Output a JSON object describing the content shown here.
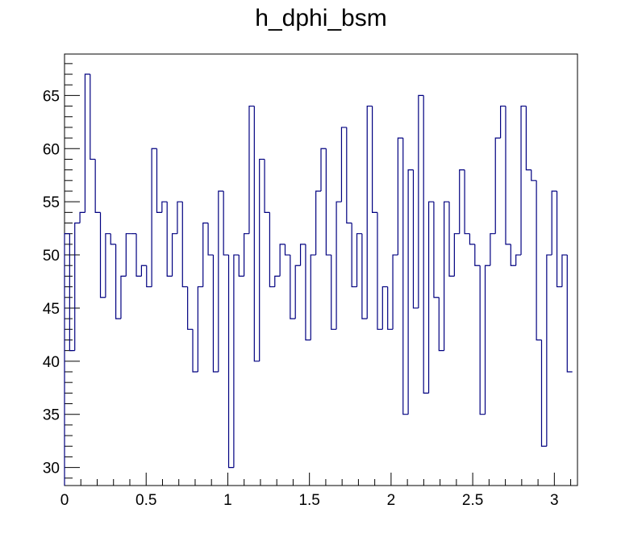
{
  "chart_data": {
    "type": "histogram",
    "title": "h_dphi_bsm",
    "xlabel": "",
    "ylabel": "",
    "xlim": [
      0,
      3.14159
    ],
    "ylim": [
      28.3,
      68.9
    ],
    "xticks": [
      0,
      0.5,
      1,
      1.5,
      2,
      2.5,
      3
    ],
    "xtick_labels": [
      "0",
      "0.5",
      "1",
      "1.5",
      "2",
      "2.5",
      "3"
    ],
    "yticks": [
      30,
      35,
      40,
      45,
      50,
      55,
      60,
      65
    ],
    "ytick_labels": [
      "30",
      "35",
      "40",
      "45",
      "50",
      "55",
      "60",
      "65"
    ],
    "grid": false,
    "legend": "none",
    "line_color": "#000080",
    "bin_width": 0.0314159,
    "values": [
      52,
      41,
      53,
      54,
      67,
      59,
      54,
      46,
      52,
      51,
      44,
      48,
      52,
      52,
      48,
      49,
      47,
      60,
      54,
      55,
      48,
      52,
      55,
      47,
      43,
      39,
      47,
      53,
      50,
      39,
      56,
      50,
      30,
      50,
      48,
      52,
      64,
      40,
      59,
      54,
      47,
      48,
      51,
      50,
      44,
      49,
      51,
      42,
      50,
      56,
      60,
      50,
      43,
      55,
      62,
      53,
      47,
      52,
      44,
      64,
      54,
      43,
      47,
      43,
      50,
      61,
      35,
      58,
      45,
      65,
      37,
      55,
      46,
      41,
      55,
      48,
      52,
      58,
      52,
      51,
      49,
      35,
      49,
      52,
      61,
      64,
      51,
      49,
      50,
      64,
      58,
      57,
      42,
      32,
      50,
      56,
      47,
      50,
      39
    ]
  }
}
